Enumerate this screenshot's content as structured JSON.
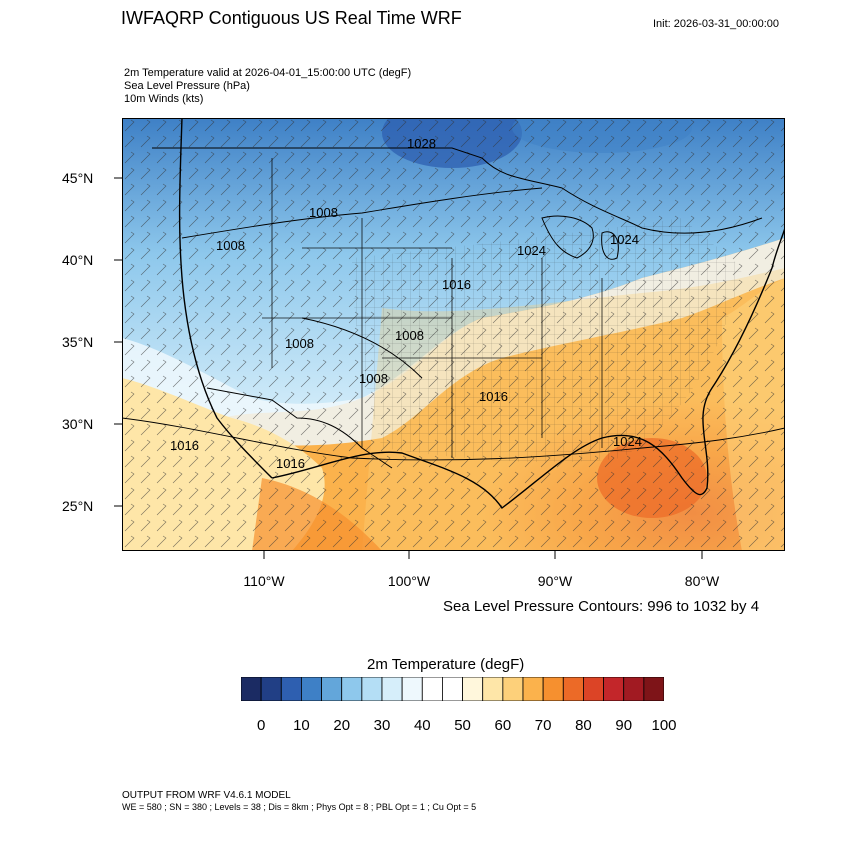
{
  "header": {
    "title": "IWFAQRP Contiguous US Real Time WRF",
    "init": "Init: 2026-03-31_00:00:00"
  },
  "subtitle": {
    "line1": "2m Temperature valid at 2026-04-01_15:00:00 UTC   (degF)",
    "line2": "Sea Level Pressure   (hPa)",
    "line3": "10m Winds   (kts)"
  },
  "axes": {
    "lat_labels": [
      "45°N",
      "40°N",
      "35°N",
      "30°N",
      "25°N"
    ],
    "lon_labels": [
      "110°W",
      "100°W",
      "90°W",
      "80°W"
    ]
  },
  "pressure_labels": [
    "1028",
    "1008",
    "1008",
    "1024",
    "1024",
    "1016",
    "1008",
    "1008",
    "1008",
    "1016",
    "1016",
    "1016",
    "1024"
  ],
  "contour_note": "Sea Level Pressure Contours: 996 to 1032 by 4",
  "colorbar": {
    "title": "2m Temperature  (degF)",
    "colors": [
      "#1b2b63",
      "#213f85",
      "#2e5fb0",
      "#3e80c6",
      "#63a6da",
      "#8ec8ec",
      "#b4def5",
      "#d6eefa",
      "#eef8fd",
      "#ffffff",
      "#ffffff",
      "#fff7dc",
      "#fee6a8",
      "#fdd07a",
      "#fbb24c",
      "#f6902f",
      "#ec6a27",
      "#dc4426",
      "#c3262a",
      "#a11a22",
      "#7e1418"
    ],
    "tick_labels": [
      "0",
      "10",
      "20",
      "30",
      "40",
      "50",
      "60",
      "70",
      "80",
      "90",
      "100"
    ]
  },
  "footer": {
    "line1": "OUTPUT FROM WRF V4.6.1 MODEL",
    "line2": "WE = 580 ; SN = 380 ; Levels = 38 ; Dis = 8km ; Phys Opt = 8 ; PBL Opt = 1 ; Cu Opt = 5"
  }
}
